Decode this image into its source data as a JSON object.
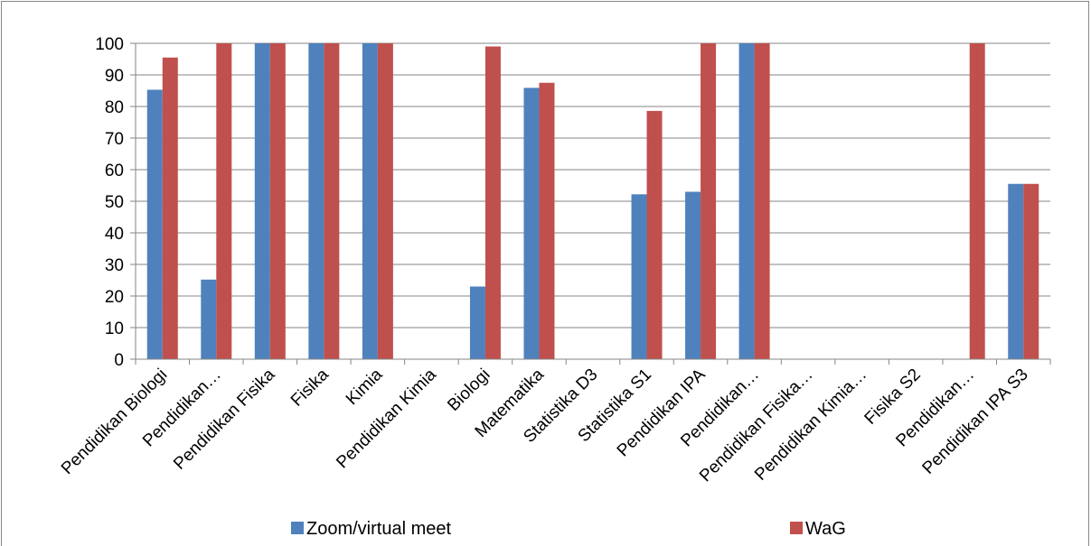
{
  "chart_data": {
    "type": "bar",
    "categories": [
      "Pendidikan Biologi",
      "Pendidikan…",
      "Pendidikan Fisika",
      "Fisika",
      "Kimia",
      "Pendidikan Kimia",
      "Biologi",
      "Matematika",
      "Statistika D3",
      "Statistika S1",
      "Pendidikan IPA",
      "Pendidikan…",
      "Pendidikan Fisika…",
      "Pendidikan Kimia…",
      "Fisika S2",
      "Pendidikan…",
      "Pendidikan IPA S3"
    ],
    "series": [
      {
        "name": "Zoom/virtual meet",
        "color": "#4F81BD",
        "values": [
          85.3,
          25.2,
          100,
          100,
          100,
          0,
          23,
          85.9,
          0,
          52.2,
          53,
          100,
          0,
          0,
          0,
          0,
          55.5
        ]
      },
      {
        "name": "WaG",
        "color": "#C0504D",
        "values": [
          95.5,
          100,
          100,
          100,
          100,
          0,
          99,
          87.5,
          0,
          78.6,
          100,
          100,
          0,
          0,
          0,
          100,
          55.5
        ]
      }
    ],
    "yticks": [
      0,
      10,
      20,
      30,
      40,
      50,
      60,
      70,
      80,
      90,
      100
    ],
    "ylim": [
      0,
      100
    ],
    "grid": true,
    "legend_position": "bottom",
    "xlabel": "",
    "ylabel": "",
    "title": ""
  }
}
